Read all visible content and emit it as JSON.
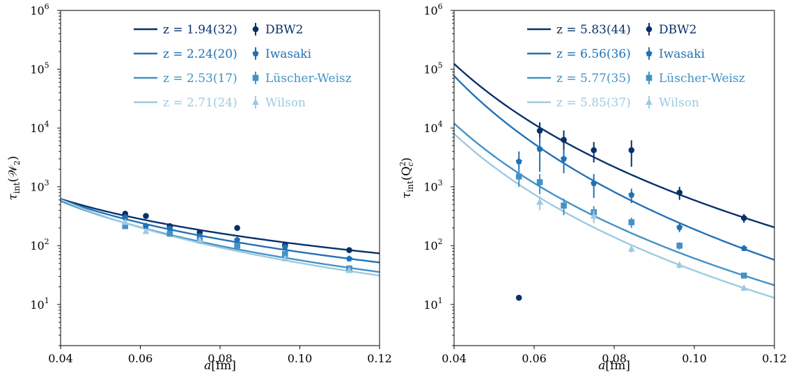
{
  "chart_data": [
    {
      "type": "scatter",
      "panel": "left",
      "xlabel_var": "a",
      "xlabel_unit": "[fm]",
      "ylabel_main": "τ",
      "ylabel_sub": "int",
      "ylabel_arg": "(𝒲",
      "ylabel_arg_sub": "2",
      "ylabel_close": ")",
      "xlim": [
        0.04,
        0.12
      ],
      "ylim_log10": [
        0.3,
        6
      ],
      "yscale": "log",
      "xticks": [
        "0.04",
        "0.06",
        "0.08",
        "0.10",
        "0.12"
      ],
      "yticks": [
        {
          "base": "10",
          "exp": "1"
        },
        {
          "base": "10",
          "exp": "2"
        },
        {
          "base": "10",
          "exp": "3"
        },
        {
          "base": "10",
          "exp": "4"
        },
        {
          "base": "10",
          "exp": "5"
        },
        {
          "base": "10",
          "exp": "6"
        }
      ],
      "legend_position": "top-right",
      "series": [
        {
          "name": "DBW2",
          "fit": "z = 1.94(32)",
          "z": 1.94,
          "color": "#08306b",
          "marker": "circle",
          "points": [
            [
              0.0562,
              350,
              40
            ],
            [
              0.0614,
              320,
              35
            ],
            [
              0.0674,
              215,
              25
            ],
            [
              0.0749,
              168,
              15
            ],
            [
              0.0843,
              200,
              20
            ],
            [
              0.0963,
              102,
              8
            ],
            [
              0.1124,
              84,
              5
            ]
          ],
          "fit_anchor": [
            0.1124,
            84
          ]
        },
        {
          "name": "Iwasaki",
          "fit": "z = 2.24(20)",
          "z": 2.24,
          "color": "#2171b5",
          "marker": "pentagon",
          "points": [
            [
              0.0562,
              300,
              40
            ],
            [
              0.0614,
              215,
              30
            ],
            [
              0.0674,
              195,
              20
            ],
            [
              0.0749,
              145,
              12
            ],
            [
              0.0843,
              125,
              10
            ],
            [
              0.0963,
              95,
              7
            ],
            [
              0.1124,
              60,
              4
            ]
          ],
          "fit_anchor": [
            0.1124,
            60
          ]
        },
        {
          "name": "Lüscher-Weisz",
          "fit": "z = 2.53(17)",
          "z": 2.53,
          "color": "#4292c6",
          "marker": "square",
          "points": [
            [
              0.0562,
              215,
              20
            ],
            [
              0.0674,
              160,
              12
            ],
            [
              0.0749,
              125,
              10
            ],
            [
              0.0843,
              100,
              8
            ],
            [
              0.0963,
              72,
              5
            ],
            [
              0.1124,
              41,
              3
            ]
          ],
          "fit_anchor": [
            0.1124,
            42
          ]
        },
        {
          "name": "Wilson",
          "fit": "z = 2.71(24)",
          "z": 2.71,
          "color": "#9ecae1",
          "marker": "triangle",
          "points": [
            [
              0.0562,
              250,
              25
            ],
            [
              0.0614,
              175,
              15
            ],
            [
              0.0749,
              125,
              10
            ],
            [
              0.0963,
              60,
              5
            ],
            [
              0.1124,
              38,
              3
            ]
          ],
          "fit_anchor": [
            0.1124,
            37
          ]
        }
      ]
    },
    {
      "type": "scatter",
      "panel": "right",
      "xlabel_var": "a",
      "xlabel_unit": "[fm]",
      "ylabel_main": "τ",
      "ylabel_sub": "int",
      "ylabel_arg": "(Q",
      "ylabel_arg_sub": "c",
      "ylabel_arg_sup": "2",
      "ylabel_close": ")",
      "xlim": [
        0.04,
        0.12
      ],
      "ylim_log10": [
        0.3,
        6
      ],
      "yscale": "log",
      "xticks": [
        "0.04",
        "0.06",
        "0.08",
        "0.10",
        "0.12"
      ],
      "yticks": [
        {
          "base": "10",
          "exp": "1"
        },
        {
          "base": "10",
          "exp": "2"
        },
        {
          "base": "10",
          "exp": "3"
        },
        {
          "base": "10",
          "exp": "4"
        },
        {
          "base": "10",
          "exp": "5"
        },
        {
          "base": "10",
          "exp": "6"
        }
      ],
      "legend_position": "top-right",
      "series": [
        {
          "name": "DBW2",
          "fit": "z = 5.83(44)",
          "z": 5.83,
          "color": "#08306b",
          "marker": "circle",
          "points": [
            [
              0.0562,
              13,
              0
            ],
            [
              0.0614,
              9000,
              3500
            ],
            [
              0.0674,
              6300,
              2800
            ],
            [
              0.0749,
              4200,
              1600
            ],
            [
              0.0843,
              4200,
              2000
            ],
            [
              0.0963,
              800,
              200
            ],
            [
              0.1124,
              295,
              50
            ]
          ],
          "fit_anchor": [
            0.1124,
            300
          ]
        },
        {
          "name": "Iwasaki",
          "fit": "z = 6.56(36)",
          "z": 6.56,
          "color": "#2171b5",
          "marker": "pentagon",
          "points": [
            [
              0.0562,
              2700,
              1300
            ],
            [
              0.0614,
              4400,
              2600
            ],
            [
              0.0674,
              3000,
              1300
            ],
            [
              0.0749,
              1150,
              500
            ],
            [
              0.0843,
              730,
              200
            ],
            [
              0.0963,
              205,
              35
            ],
            [
              0.1124,
              90,
              8
            ]
          ],
          "fit_anchor": [
            0.1124,
            88
          ]
        },
        {
          "name": "Lüscher-Weisz",
          "fit": "z = 5.77(35)",
          "z": 5.77,
          "color": "#4292c6",
          "marker": "square",
          "points": [
            [
              0.0562,
              1500,
              500
            ],
            [
              0.0614,
              1200,
              450
            ],
            [
              0.0674,
              480,
              150
            ],
            [
              0.0749,
              370,
              100
            ],
            [
              0.0843,
              250,
              50
            ],
            [
              0.0963,
              100,
              14
            ],
            [
              0.1124,
              31,
              3
            ]
          ],
          "fit_anchor": [
            0.1124,
            31
          ]
        },
        {
          "name": "Wilson",
          "fit": "z = 5.85(37)",
          "z": 5.85,
          "color": "#9ecae1",
          "marker": "triangle",
          "points": [
            [
              0.0614,
              550,
              150
            ],
            [
              0.0749,
              320,
              80
            ],
            [
              0.0843,
              88,
              12
            ],
            [
              0.0963,
              47,
              6
            ],
            [
              0.1124,
              19,
              2
            ]
          ],
          "fit_anchor": [
            0.1124,
            19
          ]
        }
      ]
    }
  ]
}
